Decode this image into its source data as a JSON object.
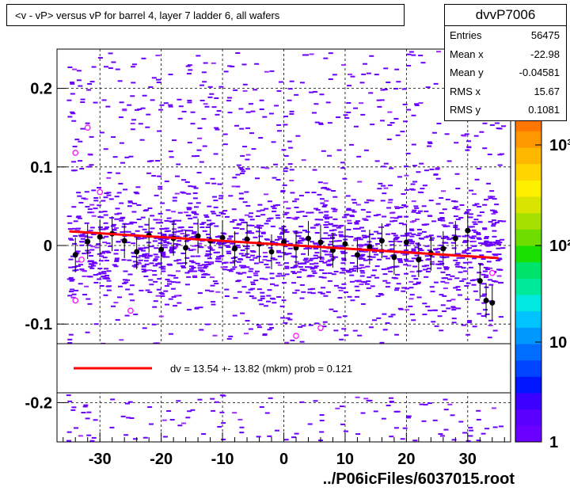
{
  "title": "<v - vP>       versus   vP for barrel 4, layer 7 ladder 6, all wafers",
  "stats": {
    "name": "dvvP7006",
    "rows": [
      {
        "label": "Entries",
        "value": "56475"
      },
      {
        "label": "Mean x",
        "value": "-22.98"
      },
      {
        "label": "Mean y",
        "value": "-0.04581"
      },
      {
        "label": "RMS x",
        "value": "15.67"
      },
      {
        "label": "RMS y",
        "value": "0.1081"
      }
    ]
  },
  "legend": {
    "text": "dv =   13.54 +- 13.82 (mkm) prob = 0.121",
    "line_color": "#ff0000"
  },
  "file_label": "../P06icFiles/6037015.root",
  "colors": {
    "scatter": "#6a00ff",
    "fit": "#ff0000",
    "points": "#000000",
    "open_markers": "#ff00ff"
  },
  "chart_data": {
    "type": "scatter",
    "title": "<v - vP>       versus   vP for barrel 4, layer 7 ladder 6, all wafers",
    "xlim": [
      -37,
      37
    ],
    "ylim": [
      -0.25,
      0.25
    ],
    "x_ticks": [
      -30,
      -20,
      -10,
      0,
      10,
      20,
      30
    ],
    "y_ticks": [
      -0.2,
      -0.1,
      0,
      0.1,
      0.2
    ],
    "grid": true,
    "colorbar": {
      "ticks": [
        "1",
        "10",
        "10²",
        "10³"
      ],
      "scale": "log"
    },
    "fit_line": {
      "x": [
        -35,
        35
      ],
      "y": [
        0.018,
        -0.016
      ]
    },
    "profile_points": [
      {
        "x": -34,
        "y": -0.012
      },
      {
        "x": -32,
        "y": 0.005
      },
      {
        "x": -30,
        "y": 0.011
      },
      {
        "x": -28,
        "y": 0.015
      },
      {
        "x": -26,
        "y": 0.006
      },
      {
        "x": -24,
        "y": -0.008
      },
      {
        "x": -22,
        "y": 0.013
      },
      {
        "x": -20,
        "y": -0.005
      },
      {
        "x": -18,
        "y": 0.009
      },
      {
        "x": -16,
        "y": -0.003
      },
      {
        "x": -14,
        "y": 0.012
      },
      {
        "x": -12,
        "y": 0.006
      },
      {
        "x": -10,
        "y": 0.01
      },
      {
        "x": -8,
        "y": -0.004
      },
      {
        "x": -6,
        "y": 0.008
      },
      {
        "x": -4,
        "y": 0.002
      },
      {
        "x": -2,
        "y": -0.008
      },
      {
        "x": 0,
        "y": 0.004
      },
      {
        "x": 2,
        "y": -0.003
      },
      {
        "x": 4,
        "y": 0.009
      },
      {
        "x": 6,
        "y": 0.004
      },
      {
        "x": 8,
        "y": -0.006
      },
      {
        "x": 10,
        "y": 0.002
      },
      {
        "x": 12,
        "y": -0.012
      },
      {
        "x": 14,
        "y": -0.002
      },
      {
        "x": 16,
        "y": 0.006
      },
      {
        "x": 18,
        "y": -0.015
      },
      {
        "x": 20,
        "y": 0.004
      },
      {
        "x": 22,
        "y": -0.018
      },
      {
        "x": 24,
        "y": -0.01
      },
      {
        "x": 26,
        "y": -0.004
      },
      {
        "x": 28,
        "y": 0.009
      },
      {
        "x": 30,
        "y": 0.019
      },
      {
        "x": 32,
        "y": -0.045
      },
      {
        "x": 33,
        "y": -0.07
      },
      {
        "x": 34,
        "y": -0.073
      }
    ],
    "open_markers": [
      {
        "x": -34,
        "y": 0.118
      },
      {
        "x": -32,
        "y": 0.15
      },
      {
        "x": -30,
        "y": 0.068
      },
      {
        "x": -34,
        "y": -0.07
      },
      {
        "x": -25,
        "y": -0.083
      },
      {
        "x": 2,
        "y": -0.115
      },
      {
        "x": 6,
        "y": -0.105
      },
      {
        "x": 34,
        "y": -0.035
      },
      {
        "x": -33,
        "y": -0.018
      }
    ]
  }
}
